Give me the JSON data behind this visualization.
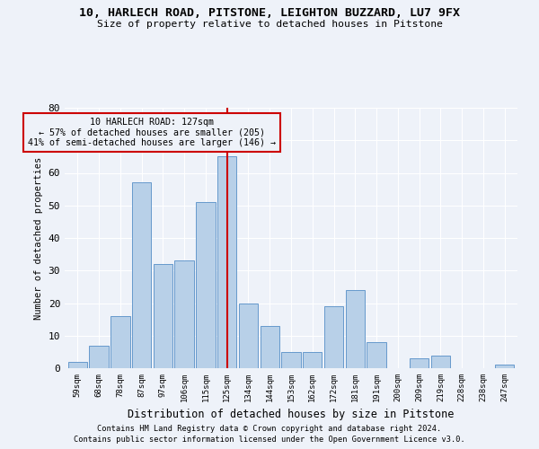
{
  "title1": "10, HARLECH ROAD, PITSTONE, LEIGHTON BUZZARD, LU7 9FX",
  "title2": "Size of property relative to detached houses in Pitstone",
  "xlabel": "Distribution of detached houses by size in Pitstone",
  "ylabel": "Number of detached properties",
  "categories": [
    "59sqm",
    "68sqm",
    "78sqm",
    "87sqm",
    "97sqm",
    "106sqm",
    "115sqm",
    "125sqm",
    "134sqm",
    "144sqm",
    "153sqm",
    "162sqm",
    "172sqm",
    "181sqm",
    "191sqm",
    "200sqm",
    "209sqm",
    "219sqm",
    "228sqm",
    "238sqm",
    "247sqm"
  ],
  "values": [
    2,
    7,
    16,
    57,
    32,
    33,
    51,
    65,
    20,
    13,
    5,
    5,
    19,
    24,
    8,
    0,
    3,
    4,
    0,
    0,
    1
  ],
  "bar_color": "#b8d0e8",
  "bar_edge_color": "#6699cc",
  "vline_x_index": 7,
  "vline_color": "#cc0000",
  "annotation_line1": "10 HARLECH ROAD: 127sqm",
  "annotation_line2": "← 57% of detached houses are smaller (205)",
  "annotation_line3": "41% of semi-detached houses are larger (146) →",
  "annotation_box_color": "#cc0000",
  "ylim": [
    0,
    80
  ],
  "yticks": [
    0,
    10,
    20,
    30,
    40,
    50,
    60,
    70,
    80
  ],
  "footnote1": "Contains HM Land Registry data © Crown copyright and database right 2024.",
  "footnote2": "Contains public sector information licensed under the Open Government Licence v3.0.",
  "bg_color": "#eef2f9",
  "grid_color": "#ffffff"
}
